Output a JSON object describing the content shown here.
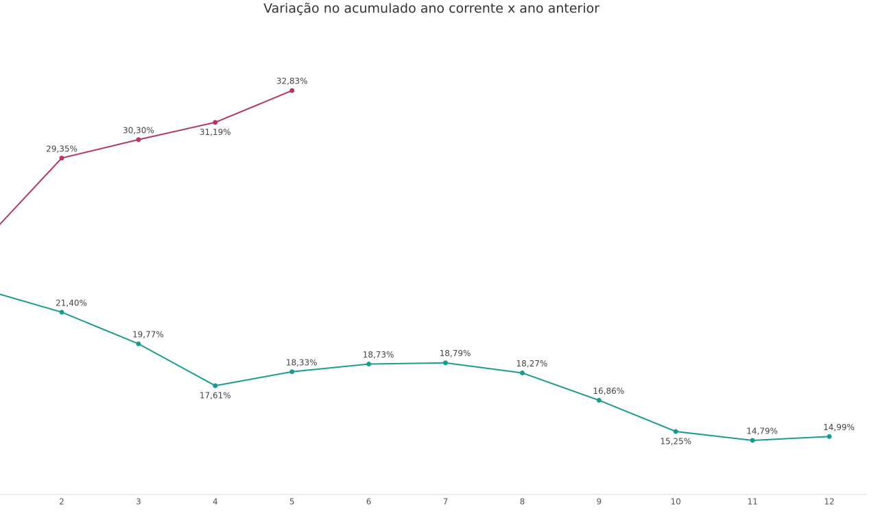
{
  "chart_data": {
    "type": "line",
    "title": "Variação no acumulado ano corrente x ano anterior",
    "categories": [
      null,
      "2",
      "3",
      "4",
      "5",
      "6",
      "7",
      "8",
      "9",
      "10",
      "11",
      "12"
    ],
    "ylim": [
      12,
      37.5
    ],
    "series": [
      {
        "color": "#b5365e",
        "values": [
          25.11,
          29.35,
          30.3,
          31.19,
          32.83,
          null,
          null,
          null,
          null,
          null,
          null,
          null
        ],
        "value_labels": [
          null,
          "29,35%",
          "30,30%",
          "31,19%",
          "32,83%",
          null,
          null,
          null,
          null,
          null,
          null,
          null
        ]
      },
      {
        "color": "#1a9b8f",
        "values": [
          22.55,
          21.4,
          19.77,
          17.61,
          18.33,
          18.73,
          18.79,
          18.27,
          16.86,
          15.25,
          14.79,
          14.99
        ],
        "value_labels": [
          null,
          "21,40%",
          "19,77%",
          "17,61%",
          "18,33%",
          "18,73%",
          "18,79%",
          "18,27%",
          "16,86%",
          "15,25%",
          "14,79%",
          "14,99%"
        ]
      }
    ]
  }
}
